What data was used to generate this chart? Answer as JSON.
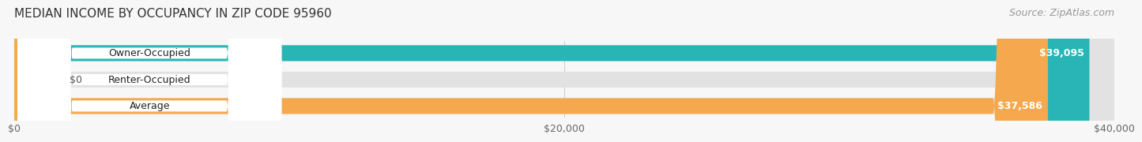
{
  "title": "MEDIAN INCOME BY OCCUPANCY IN ZIP CODE 95960",
  "source": "Source: ZipAtlas.com",
  "categories": [
    "Owner-Occupied",
    "Renter-Occupied",
    "Average"
  ],
  "values": [
    39095,
    0,
    37586
  ],
  "bar_colors": [
    "#29b5b5",
    "#c5a8d0",
    "#f5a84e"
  ],
  "value_labels": [
    "$39,095",
    "$0",
    "$37,586"
  ],
  "xlim": [
    0,
    40000
  ],
  "xticks": [
    0,
    20000,
    40000
  ],
  "xtick_labels": [
    "$0",
    "$20,000",
    "$40,000"
  ],
  "background_color": "#f7f7f7",
  "bar_background": "#e2e2e2",
  "pill_color": "#ffffff",
  "title_fontsize": 11,
  "source_fontsize": 9,
  "label_fontsize": 9,
  "value_fontsize": 9,
  "tick_fontsize": 9,
  "bar_height": 0.6,
  "renter_stub_value": 1600
}
